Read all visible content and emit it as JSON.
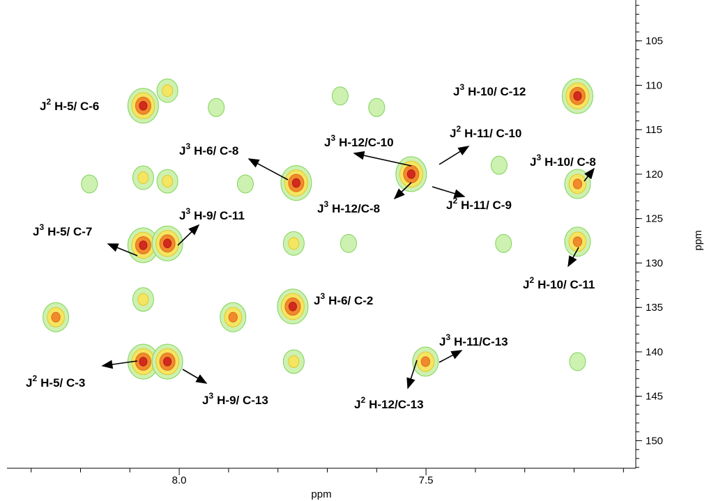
{
  "chart_data": {
    "type": "scatter",
    "xlabel": "ppm",
    "ylabel": "ppm",
    "x": [
      8.073,
      8.024,
      7.925,
      7.674,
      7.6,
      7.193,
      8.182,
      8.073,
      8.024,
      7.866,
      7.763,
      7.53,
      7.352,
      7.193,
      8.073,
      8.024,
      7.768,
      7.657,
      7.343,
      7.193,
      8.073,
      7.77,
      8.25,
      7.891,
      8.073,
      8.024,
      7.768,
      7.501,
      7.193
    ],
    "values": [
      112.3,
      110.6,
      112.5,
      111.2,
      112.5,
      111.2,
      121.1,
      120.4,
      120.8,
      121.1,
      121.0,
      120.0,
      119.0,
      121.1,
      128.0,
      127.8,
      127.8,
      127.8,
      127.8,
      127.6,
      134.1,
      134.9,
      136.1,
      136.1,
      141.1,
      141.1,
      141.1,
      141.1,
      141.1
    ],
    "levels": [
      4,
      2,
      1,
      1,
      1,
      4,
      1,
      2,
      2,
      1,
      4,
      4,
      1,
      3,
      4,
      4,
      2,
      1,
      1,
      3,
      2,
      4,
      3,
      3,
      4,
      4,
      2,
      3,
      1
    ],
    "xlim": [
      8.349,
      7.075
    ],
    "ylim": [
      100.4,
      153.1
    ],
    "xticks": [
      {
        "value": 8,
        "label": "8.0"
      },
      {
        "value": 7.5,
        "label": "7.5"
      }
    ],
    "xminorticks": [
      8.3,
      8.2,
      8.1,
      7.9,
      7.8,
      7.7,
      7.6,
      7.4,
      7.3,
      7.2,
      7.1
    ],
    "yticks": [
      105,
      110,
      115,
      120,
      125,
      130,
      135,
      140,
      145,
      150
    ],
    "yminor_step": 1,
    "annotations": [
      {
        "prefix": "J",
        "sup": "2",
        "text": "H-5/ C-6"
      },
      {
        "prefix": "J",
        "sup": "3",
        "text": "H-10/ C-12"
      },
      {
        "prefix": "J",
        "sup": "3",
        "text": "H-6/ C-8"
      },
      {
        "prefix": "J",
        "sup": "3",
        "text": "H-12/C-10"
      },
      {
        "prefix": "J",
        "sup": "2",
        "text": "H-11/ C-10"
      },
      {
        "prefix": "J",
        "sup": "3",
        "text": "H-10/ C-8"
      },
      {
        "prefix": "J",
        "sup": "3",
        "text": "H-12/C-8"
      },
      {
        "prefix": "J",
        "sup": "2",
        "text": "H-11/ C-9"
      },
      {
        "prefix": "J",
        "sup": "3",
        "text": "H-9/ C-11"
      },
      {
        "prefix": "J",
        "sup": "3",
        "text": "H-5/ C-7"
      },
      {
        "prefix": "J",
        "sup": "2",
        "text": "H-10/ C-11"
      },
      {
        "prefix": "J",
        "sup": "3",
        "text": "H-6/ C-2"
      },
      {
        "prefix": "J",
        "sup": "3",
        "text": "H-11/C-13"
      },
      {
        "prefix": "J",
        "sup": "2",
        "text": "H-5/ C-3"
      },
      {
        "prefix": "J",
        "sup": "3",
        "text": "H-9/ C-13"
      },
      {
        "prefix": "J",
        "sup": "2",
        "text": "H-12/C-13"
      }
    ]
  }
}
